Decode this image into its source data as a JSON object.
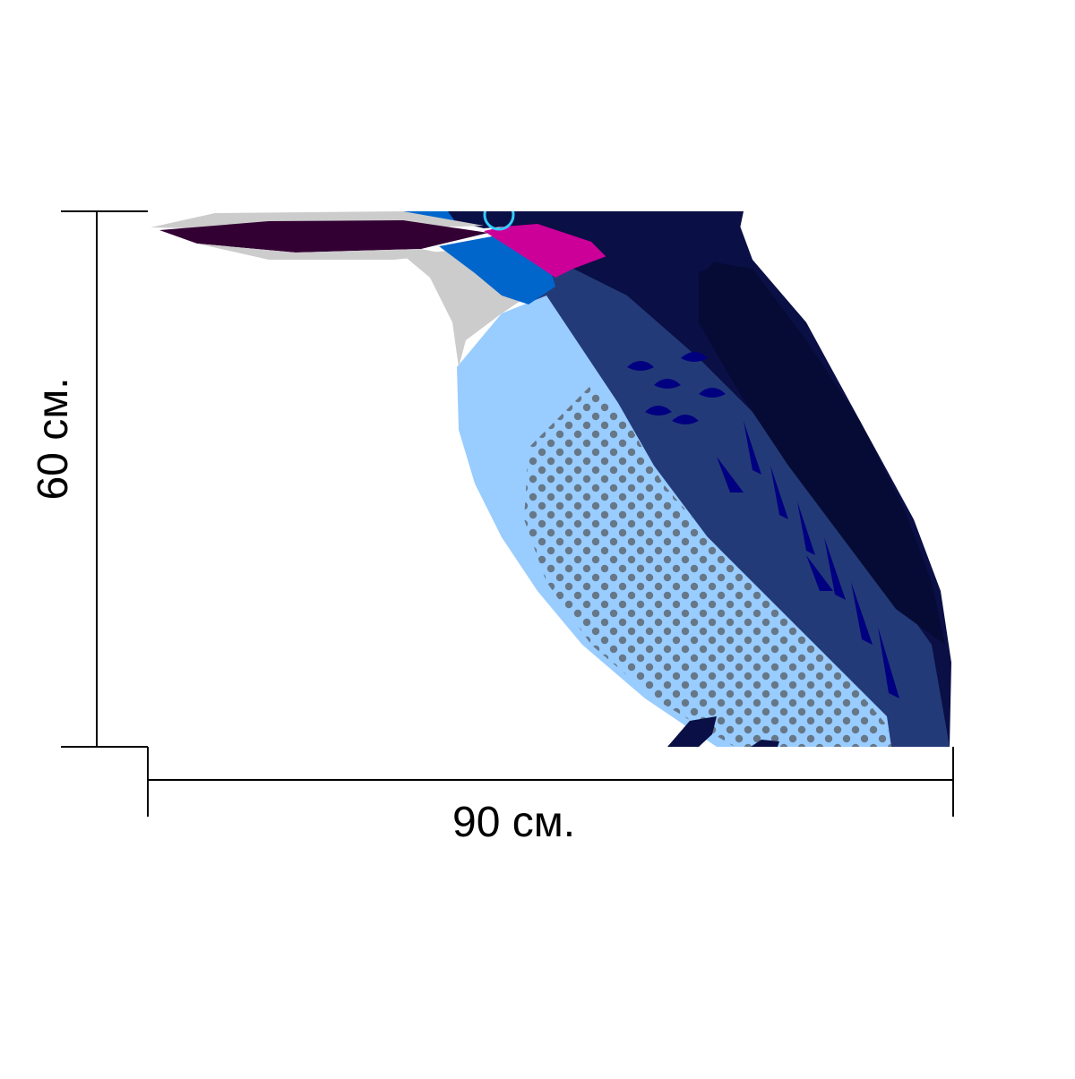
{
  "dimensions": {
    "width_label": "90 см.",
    "height_label": "60 см."
  },
  "artwork": {
    "subject": "kingfisher-bird",
    "colors": {
      "beak_dark": "#330033",
      "beak_light": "#cccccc",
      "throat_gray": "#cccccc",
      "head_magenta": "#cc0099",
      "face_blue": "#0066cc",
      "breast_light_blue": "#99ccff",
      "dots": "#667788",
      "back_navy": "#0a0f45",
      "wing_blue": "#233a78",
      "feather_royal": "#000080",
      "eye_cyan": "#33ccff"
    }
  }
}
